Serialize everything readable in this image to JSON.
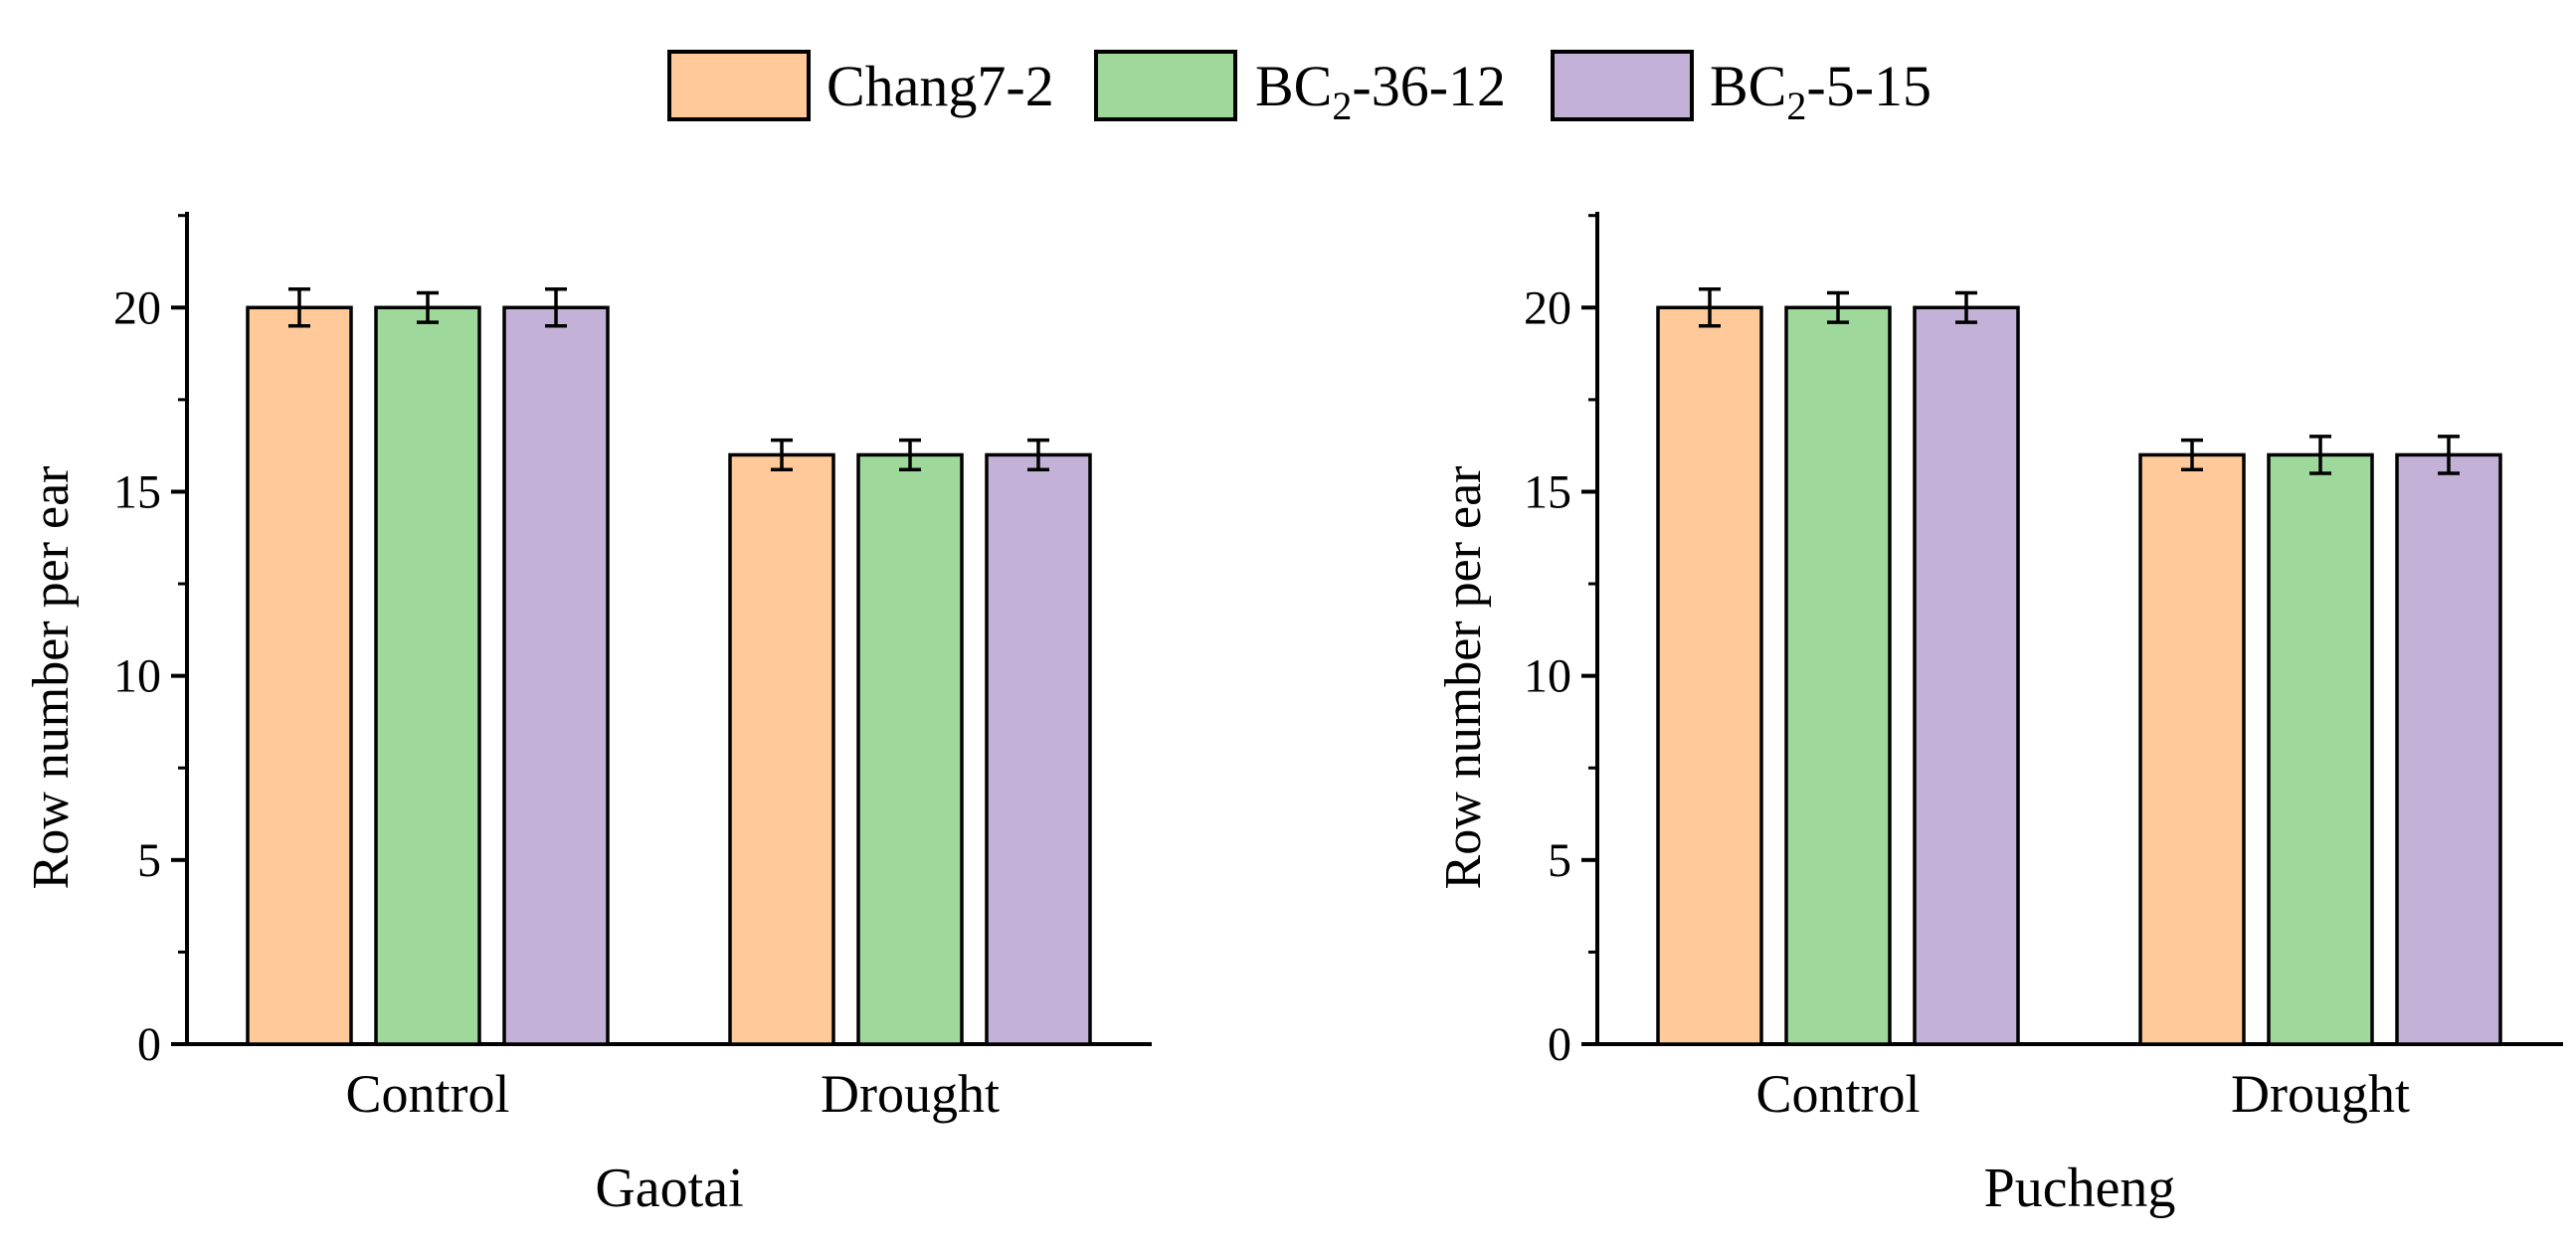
{
  "legend": [
    {
      "key": "chang",
      "label": "Chang7-2",
      "color": "#ffc999"
    },
    {
      "key": "bc36",
      "label": "BC",
      "sub": "2",
      "tail": "-36-12",
      "color": "#9ed89b"
    },
    {
      "key": "bc5",
      "label": "BC",
      "sub": "2",
      "tail": "-5-15",
      "color": "#c4b1d7"
    }
  ],
  "chart_data": [
    {
      "type": "bar",
      "title": "Gaotai",
      "xlabel": "Gaotai",
      "ylabel": "Row number per ear",
      "ylim": [
        0,
        22.6
      ],
      "yticks": [
        0,
        5,
        10,
        15,
        20
      ],
      "categories": [
        "Control",
        "Drought"
      ],
      "series": [
        {
          "name": "Chang7-2",
          "values": [
            20,
            16
          ],
          "errors": [
            0.5,
            0.4
          ]
        },
        {
          "name": "BC2-36-12",
          "values": [
            20,
            16
          ],
          "errors": [
            0.4,
            0.4
          ]
        },
        {
          "name": "BC2-5-15",
          "values": [
            20,
            16
          ],
          "errors": [
            0.5,
            0.4
          ]
        }
      ]
    },
    {
      "type": "bar",
      "title": "Pucheng",
      "xlabel": "Pucheng",
      "ylabel": "Row number per ear",
      "ylim": [
        0,
        22.6
      ],
      "yticks": [
        0,
        5,
        10,
        15,
        20
      ],
      "categories": [
        "Control",
        "Drought"
      ],
      "series": [
        {
          "name": "Chang7-2",
          "values": [
            20,
            16
          ],
          "errors": [
            0.5,
            0.4
          ]
        },
        {
          "name": "BC2-36-12",
          "values": [
            20,
            16
          ],
          "errors": [
            0.4,
            0.5
          ]
        },
        {
          "name": "BC2-5-15",
          "values": [
            20,
            16
          ],
          "errors": [
            0.4,
            0.5
          ]
        }
      ]
    }
  ]
}
